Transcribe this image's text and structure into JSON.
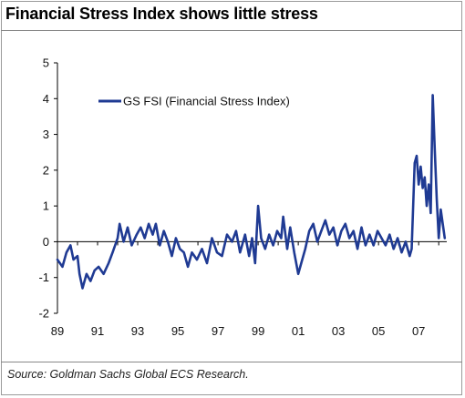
{
  "title": "Financial Stress Index shows little stress",
  "source": "Source: Goldman Sachs Global ECS Research.",
  "chart_data": {
    "type": "line",
    "title": "Financial Stress Index shows little stress",
    "xlabel": "",
    "ylabel": "",
    "xlim": [
      1989,
      2008.4
    ],
    "ylim": [
      -2,
      5
    ],
    "x_ticks": [
      1989,
      1991,
      1993,
      1995,
      1997,
      1999,
      2001,
      2003,
      2005,
      2007
    ],
    "x_tick_labels": [
      "89",
      "91",
      "93",
      "95",
      "97",
      "99",
      "01",
      "03",
      "05",
      "07"
    ],
    "y_ticks": [
      -2,
      -1,
      0,
      1,
      2,
      3,
      4,
      5
    ],
    "y_tick_labels": [
      "-2",
      "-1",
      "0",
      "1",
      "2",
      "3",
      "4",
      "5"
    ],
    "legend_position": "top-left",
    "grid": false,
    "series": [
      {
        "name": "GS FSI (Financial Stress Index)",
        "color": "#1f3a93",
        "x": [
          1989.0,
          1989.25,
          1989.45,
          1989.65,
          1989.8,
          1990.0,
          1990.1,
          1990.25,
          1990.45,
          1990.65,
          1990.85,
          1991.05,
          1991.3,
          1991.55,
          1991.75,
          1992.0,
          1992.1,
          1992.3,
          1992.5,
          1992.7,
          1992.95,
          1993.15,
          1993.35,
          1993.55,
          1993.75,
          1993.9,
          1994.1,
          1994.3,
          1994.5,
          1994.7,
          1994.9,
          1995.1,
          1995.3,
          1995.5,
          1995.7,
          1995.95,
          1996.2,
          1996.45,
          1996.7,
          1996.95,
          1997.2,
          1997.45,
          1997.7,
          1997.9,
          1998.1,
          1998.35,
          1998.55,
          1998.7,
          1998.85,
          1999.0,
          1999.15,
          1999.35,
          1999.55,
          1999.75,
          1999.95,
          2000.15,
          2000.25,
          2000.45,
          2000.6,
          2000.8,
          2001.0,
          2001.15,
          2001.35,
          2001.55,
          2001.75,
          2001.95,
          2002.15,
          2002.35,
          2002.55,
          2002.75,
          2002.95,
          2003.15,
          2003.35,
          2003.55,
          2003.75,
          2003.95,
          2004.15,
          2004.35,
          2004.55,
          2004.75,
          2004.95,
          2005.15,
          2005.35,
          2005.55,
          2005.75,
          2005.95,
          2006.15,
          2006.35,
          2006.55,
          2006.65,
          2006.8,
          2006.9,
          2007.0,
          2007.1,
          2007.2,
          2007.3,
          2007.4,
          2007.5,
          2007.6,
          2007.7,
          2007.8,
          2007.9,
          2008.0,
          2008.1,
          2008.2,
          2008.3
        ],
        "y": [
          -0.5,
          -0.7,
          -0.3,
          -0.1,
          -0.5,
          -0.4,
          -0.9,
          -1.3,
          -0.9,
          -1.1,
          -0.8,
          -0.7,
          -0.9,
          -0.6,
          -0.3,
          0.1,
          0.5,
          0.0,
          0.4,
          -0.1,
          0.2,
          0.4,
          0.1,
          0.5,
          0.2,
          0.5,
          -0.1,
          0.3,
          0.0,
          -0.4,
          0.1,
          -0.2,
          -0.3,
          -0.7,
          -0.3,
          -0.5,
          -0.2,
          -0.6,
          0.1,
          -0.3,
          -0.4,
          0.2,
          0.0,
          0.3,
          -0.3,
          0.2,
          -0.4,
          0.1,
          -0.6,
          1.0,
          0.1,
          -0.2,
          0.2,
          -0.1,
          0.3,
          0.1,
          0.7,
          -0.2,
          0.4,
          -0.3,
          -0.9,
          -0.6,
          -0.2,
          0.3,
          0.5,
          0.0,
          0.3,
          0.6,
          0.2,
          0.4,
          -0.1,
          0.3,
          0.5,
          0.1,
          0.3,
          -0.2,
          0.4,
          -0.1,
          0.2,
          -0.1,
          0.3,
          0.1,
          -0.1,
          0.2,
          -0.2,
          0.1,
          -0.3,
          0.0,
          -0.4,
          -0.2,
          2.2,
          2.4,
          1.6,
          2.1,
          1.5,
          1.8,
          1.0,
          1.6,
          0.8,
          4.1,
          2.6,
          1.2,
          0.1,
          0.9,
          0.5,
          0.1
        ]
      }
    ]
  }
}
